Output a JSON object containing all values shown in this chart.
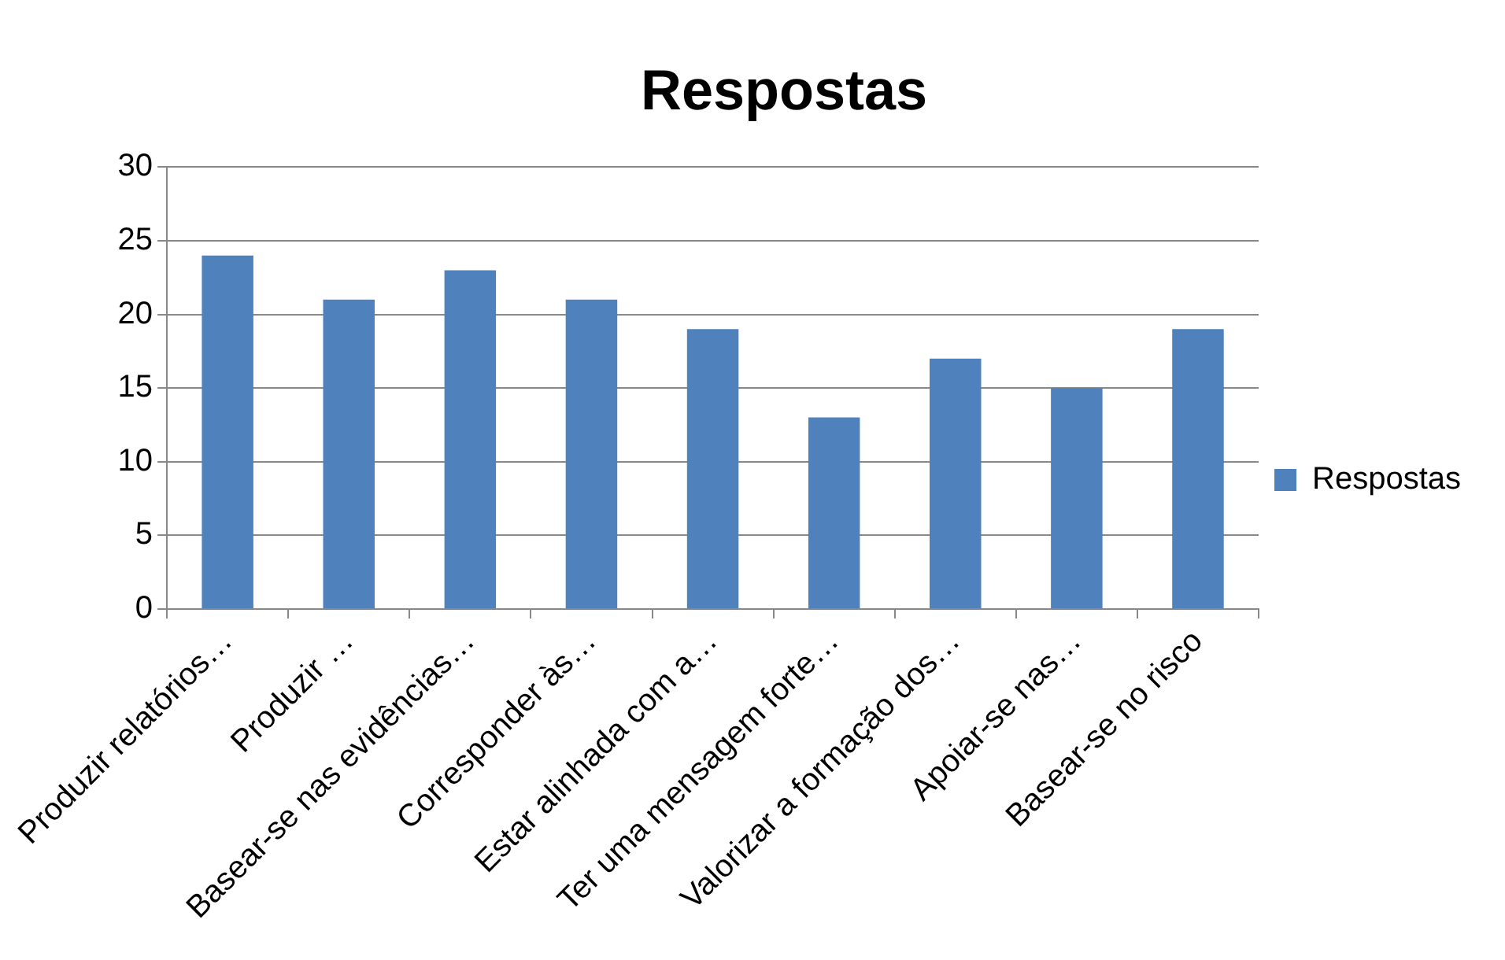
{
  "chart_data": {
    "type": "bar",
    "title": "Respostas",
    "categories": [
      "Produzir relatórios…",
      "Produzir …",
      "Basear-se nas evidências…",
      "Corresponder às…",
      "Estar alinhada com a…",
      "Ter uma mensagem forte…",
      "Valorizar a formação dos…",
      "Apoiar-se nas…",
      "Basear-se no risco"
    ],
    "series": [
      {
        "name": "Respostas",
        "color": "#4f81bd",
        "values": [
          24,
          21,
          23,
          21,
          19,
          13,
          17,
          15,
          19
        ]
      }
    ],
    "ylim": [
      0,
      30
    ],
    "yticks": [
      0,
      5,
      10,
      15,
      20,
      25,
      30
    ],
    "grid": "y",
    "legend": "right"
  }
}
